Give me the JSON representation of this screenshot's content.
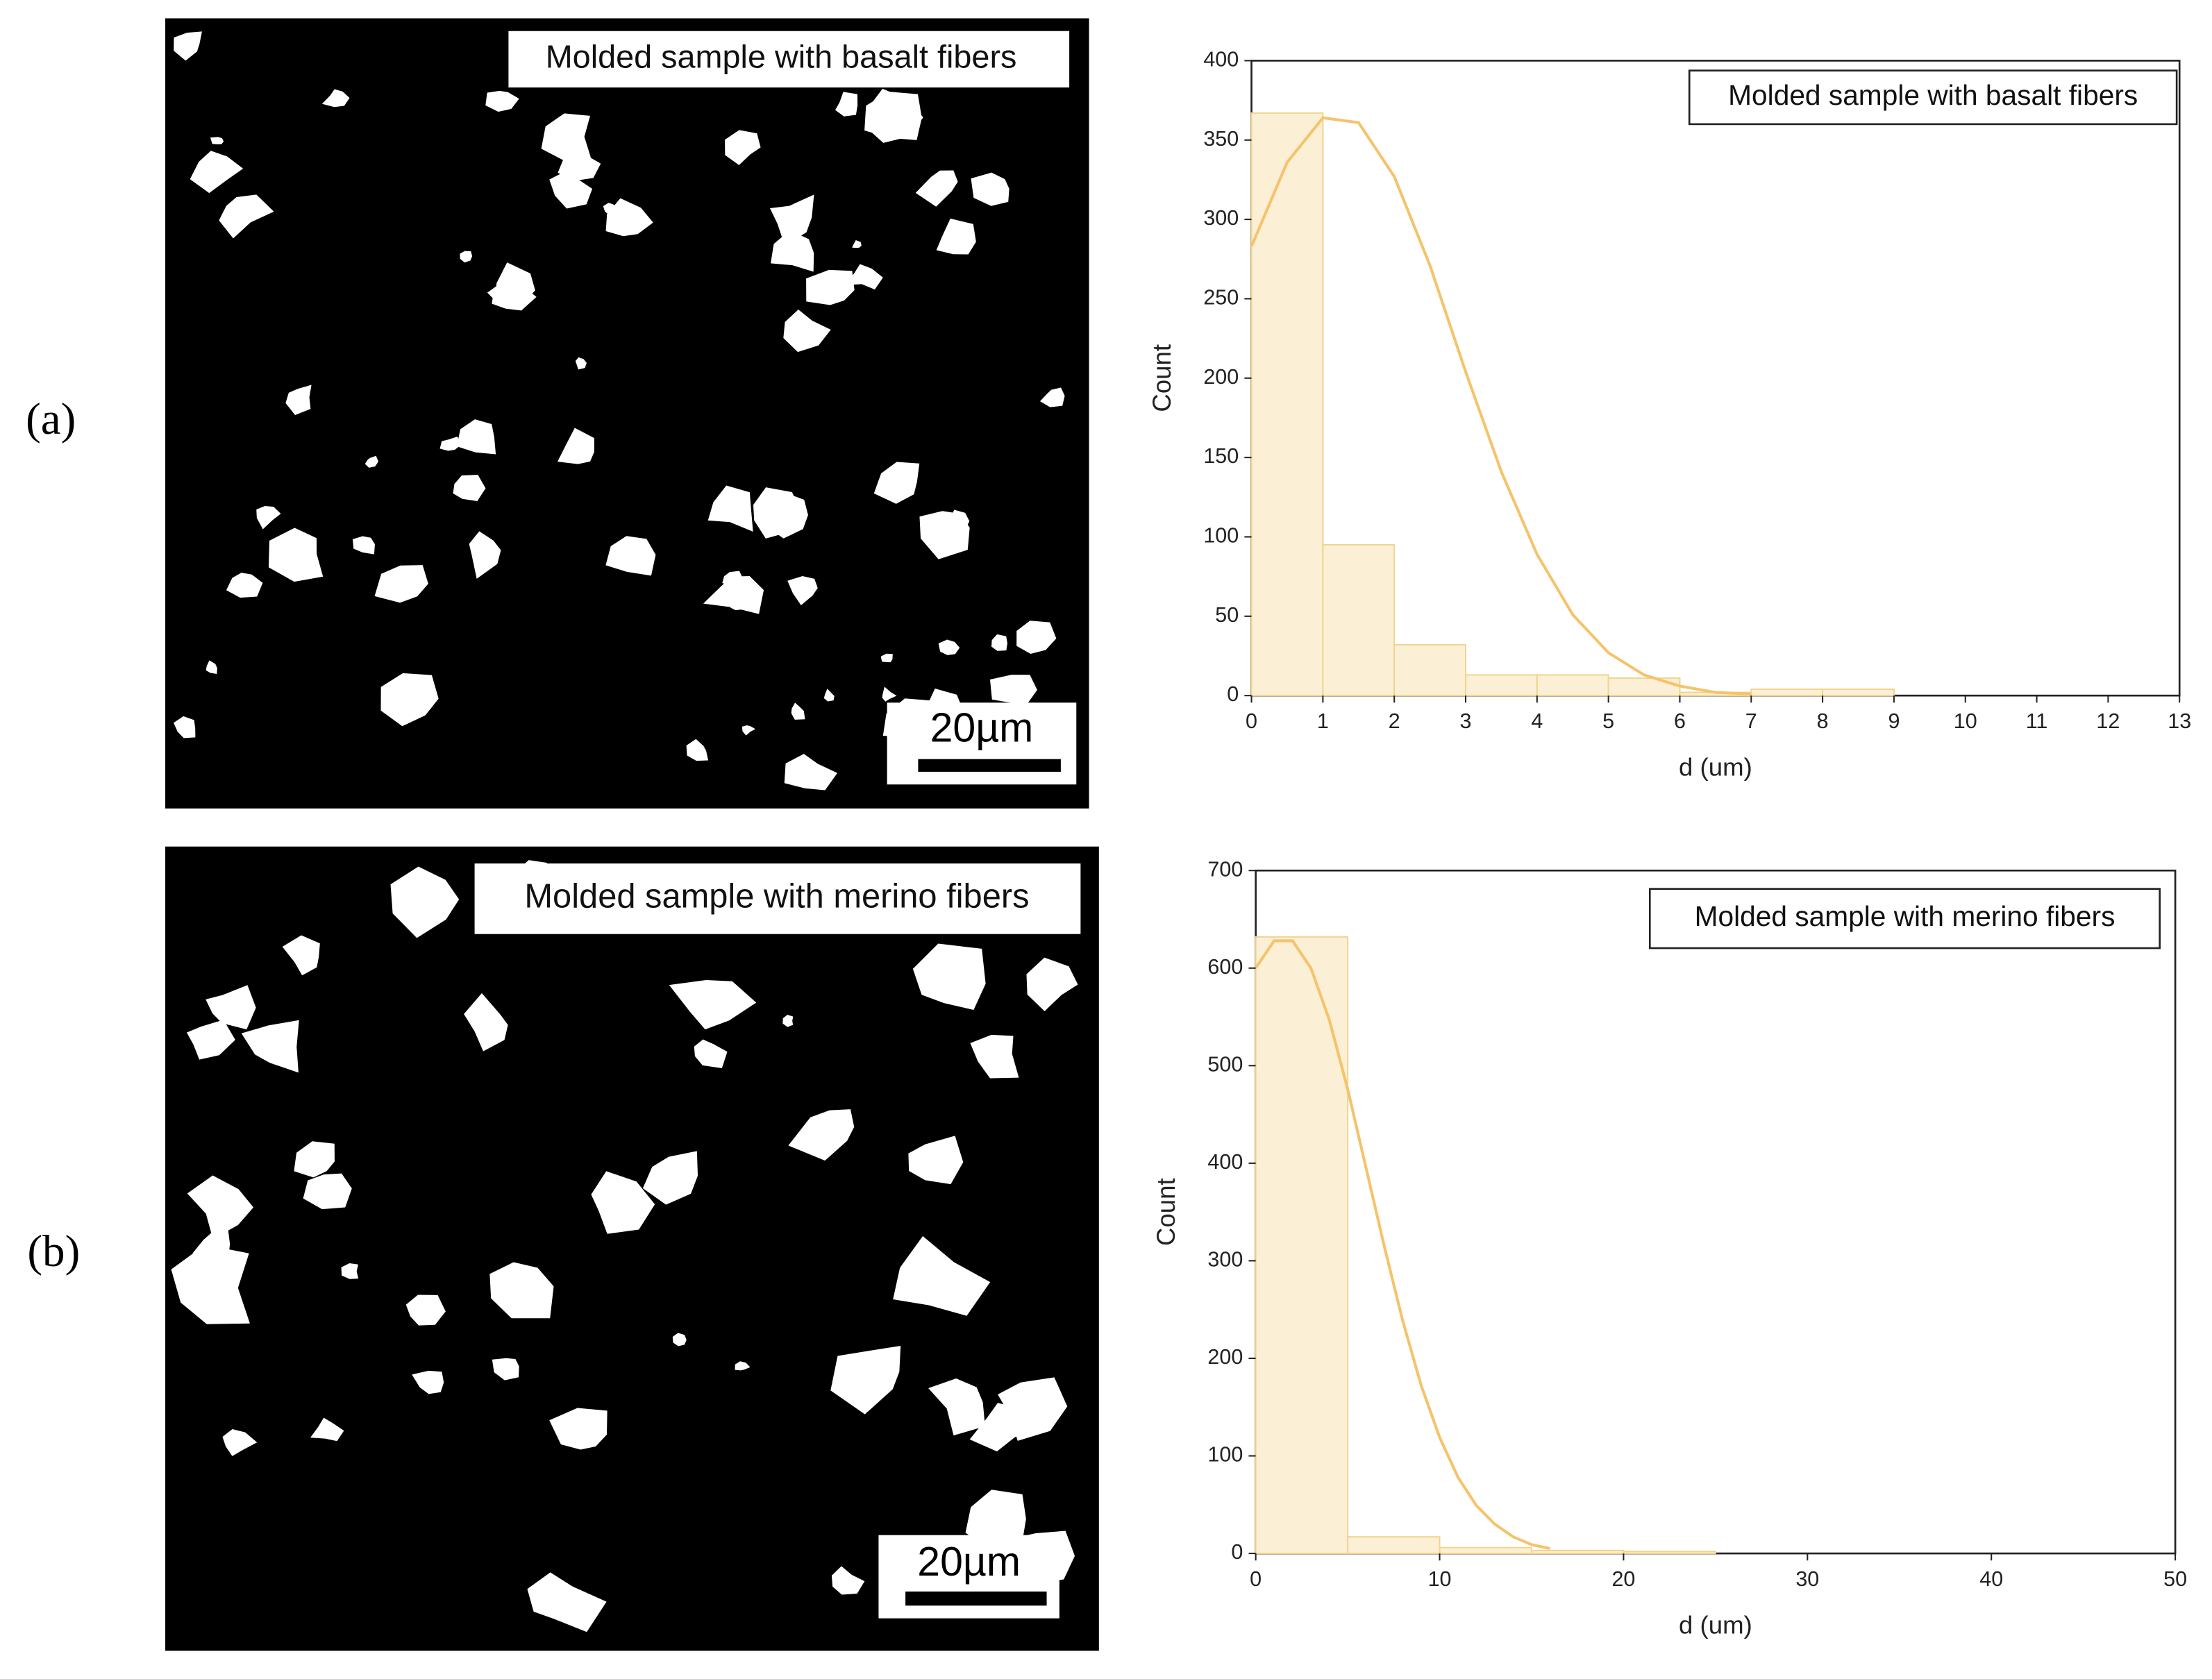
{
  "panels": [
    {
      "label": "(a)",
      "caption": "Molded sample with basalt fibers",
      "scale_bar": "20µm"
    },
    {
      "label": "(b)",
      "caption": "Molded sample with merino fibers",
      "scale_bar": "20µm"
    }
  ],
  "chart_data": [
    {
      "type": "histogram",
      "annotation": "Molded sample with basalt fibers",
      "bins": [
        0,
        1,
        2,
        3,
        4,
        5,
        6,
        7,
        8,
        9
      ],
      "counts": [
        367,
        95,
        32,
        13,
        13,
        11,
        2,
        4,
        4
      ],
      "color": "#fbefd6",
      "edge_color": "#f0d58f",
      "fit": {
        "color": "#f5c36b",
        "x": [
          0,
          0.5,
          1,
          1.5,
          2,
          2.5,
          3,
          3.5,
          4,
          4.5,
          5,
          5.5,
          6,
          6.5,
          7
        ],
        "values": [
          283,
          336,
          364,
          361,
          327,
          271,
          204,
          141,
          89,
          51,
          27,
          13,
          6,
          2,
          1
        ]
      },
      "x_label": "d (um)",
      "y_label": "Count",
      "xlim": [
        0,
        13
      ],
      "ylim": [
        0,
        400
      ],
      "xticks": [
        0,
        1,
        2,
        3,
        4,
        5,
        6,
        7,
        8,
        9,
        10,
        11,
        12,
        13
      ],
      "yticks": [
        0,
        50,
        100,
        150,
        200,
        250,
        300,
        350,
        400
      ],
      "grid": false
    },
    {
      "type": "histogram",
      "annotation": "Molded sample with merino fibers",
      "bins": [
        0,
        5,
        10,
        15,
        20,
        25
      ],
      "counts": [
        632,
        17,
        6,
        3,
        2
      ],
      "color": "#fbefd6",
      "edge_color": "#f0d58f",
      "fit": {
        "color": "#f5c36b",
        "x": [
          0,
          1,
          2,
          3,
          4,
          5,
          6,
          7,
          8,
          9,
          10,
          11,
          12,
          13,
          14,
          15,
          16
        ],
        "values": [
          600,
          628,
          628,
          600,
          547,
          476,
          395,
          314,
          238,
          172,
          119,
          78,
          49,
          30,
          17,
          9,
          5
        ]
      },
      "x_label": "d (um)",
      "y_label": "Count",
      "xlim": [
        0,
        50
      ],
      "ylim": [
        0,
        700
      ],
      "xticks": [
        0,
        10,
        20,
        30,
        40,
        50
      ],
      "yticks": [
        0,
        100,
        200,
        300,
        400,
        500,
        600,
        700
      ],
      "grid": false
    }
  ]
}
